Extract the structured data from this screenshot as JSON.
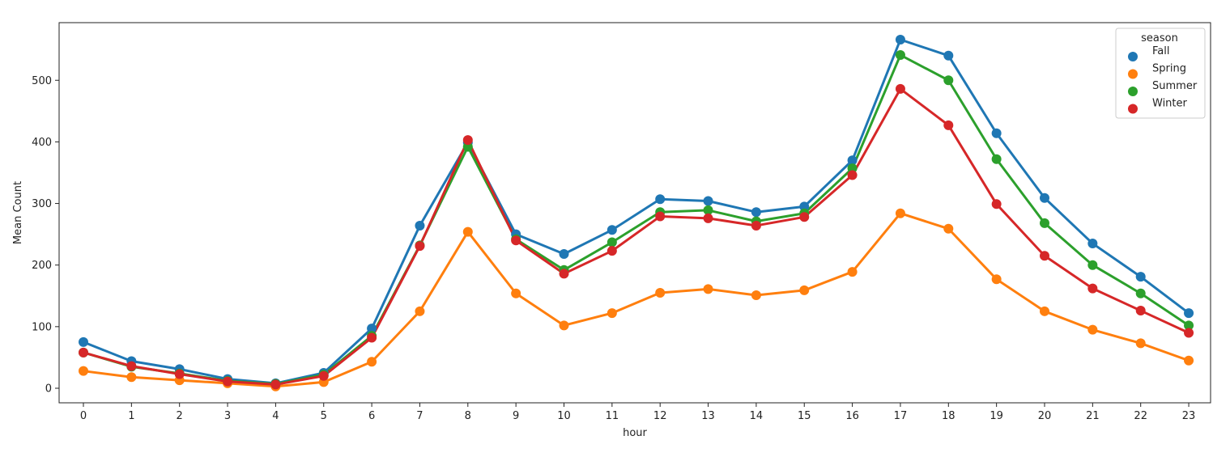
{
  "chart_data": {
    "type": "line",
    "title": "",
    "xlabel": "hour",
    "ylabel": "Mean Count",
    "categories": [
      "0",
      "1",
      "2",
      "3",
      "4",
      "5",
      "6",
      "7",
      "8",
      "9",
      "10",
      "11",
      "12",
      "13",
      "14",
      "15",
      "16",
      "17",
      "18",
      "19",
      "20",
      "21",
      "22",
      "23"
    ],
    "ylim": [
      -25,
      590
    ],
    "yticks": [
      0,
      100,
      200,
      300,
      400,
      500
    ],
    "grid": false,
    "legend": {
      "title": "season",
      "position": "top-right"
    },
    "series": [
      {
        "name": "Fall",
        "color": "#1f77b4",
        "values": [
          75,
          44,
          31,
          15,
          8,
          25,
          97,
          264,
          399,
          250,
          218,
          257,
          307,
          304,
          286,
          295,
          370,
          566,
          540,
          414,
          309,
          235,
          181,
          122
        ]
      },
      {
        "name": "Spring",
        "color": "#ff7f0e",
        "values": [
          28,
          18,
          13,
          8,
          3,
          10,
          43,
          125,
          254,
          154,
          102,
          122,
          155,
          161,
          151,
          159,
          189,
          284,
          259,
          177,
          125,
          95,
          73,
          45
        ]
      },
      {
        "name": "Summer",
        "color": "#2ca02c",
        "values": [
          58,
          35,
          24,
          12,
          7,
          22,
          85,
          232,
          392,
          242,
          192,
          237,
          286,
          289,
          271,
          284,
          357,
          541,
          500,
          372,
          268,
          200,
          154,
          102
        ]
      },
      {
        "name": "Winter",
        "color": "#d62728",
        "values": [
          58,
          36,
          23,
          11,
          6,
          20,
          82,
          231,
          403,
          240,
          186,
          223,
          279,
          276,
          264,
          278,
          346,
          486,
          427,
          299,
          215,
          162,
          126,
          90
        ]
      }
    ]
  }
}
